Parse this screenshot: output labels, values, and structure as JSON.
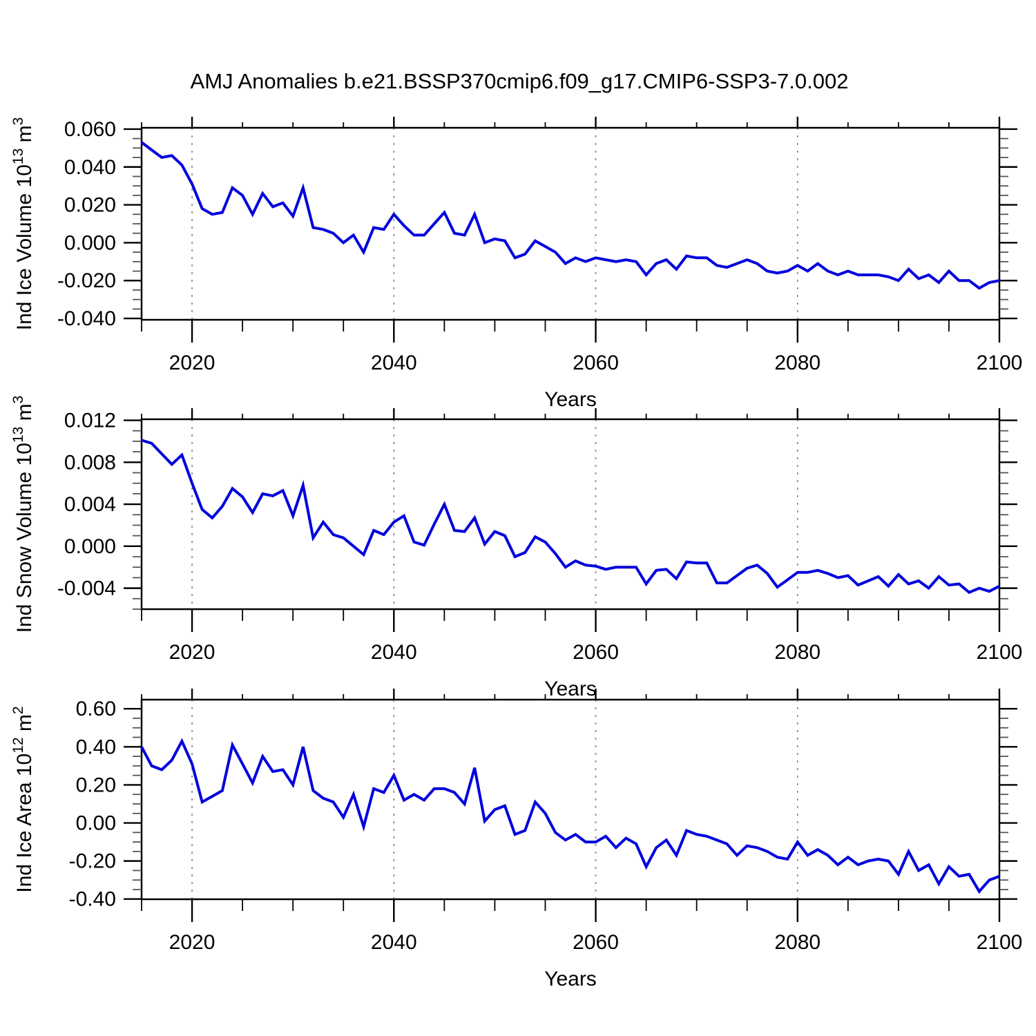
{
  "title": "AMJ Anomalies b.e21.BSSP370cmip6.f09_g17.CMIP6-SSP3-7.0.002",
  "figure": {
    "background": "#ffffff",
    "line_color": "#0000dd",
    "grid_color": "#808080",
    "text_color": "#000000"
  },
  "years": [
    2015,
    2016,
    2017,
    2018,
    2019,
    2020,
    2021,
    2022,
    2023,
    2024,
    2025,
    2026,
    2027,
    2028,
    2029,
    2030,
    2031,
    2032,
    2033,
    2034,
    2035,
    2036,
    2037,
    2038,
    2039,
    2040,
    2041,
    2042,
    2043,
    2044,
    2045,
    2046,
    2047,
    2048,
    2049,
    2050,
    2051,
    2052,
    2053,
    2054,
    2055,
    2056,
    2057,
    2058,
    2059,
    2060,
    2061,
    2062,
    2063,
    2064,
    2065,
    2066,
    2067,
    2068,
    2069,
    2070,
    2071,
    2072,
    2073,
    2074,
    2075,
    2076,
    2077,
    2078,
    2079,
    2080,
    2081,
    2082,
    2083,
    2084,
    2085,
    2086,
    2087,
    2088,
    2089,
    2090,
    2091,
    2092,
    2093,
    2094,
    2095,
    2096,
    2097,
    2098,
    2099,
    2100
  ],
  "chart_data": [
    {
      "type": "line",
      "name": "ice-volume",
      "ylabel": "Ind Ice Volume 10^13 m^3",
      "ylabel_parts": [
        {
          "t": "Ind Ice Volume 10"
        },
        {
          "t": "13",
          "sup": true
        },
        {
          "t": " m"
        },
        {
          "t": "3",
          "sup": true
        }
      ],
      "xlabel": "Years",
      "xlim": [
        2015,
        2100
      ],
      "ylim": [
        -0.04,
        0.06
      ],
      "ytick_labels": [
        "0.060",
        "0.040",
        "0.020",
        "0.000",
        "-0.020",
        "-0.040"
      ],
      "ytick_values": [
        0.06,
        0.04,
        0.02,
        0.0,
        -0.02,
        -0.04
      ],
      "y_minor_step": 0.005,
      "xtick_labels": [
        "2020",
        "2040",
        "2060",
        "2080",
        "2100"
      ],
      "xtick_values": [
        2020,
        2040,
        2060,
        2080,
        2100
      ],
      "x_minor_step": 5,
      "grid_x": [
        2020,
        2040,
        2060,
        2080
      ],
      "legend": "none",
      "values": [
        0.053,
        0.049,
        0.045,
        0.046,
        0.041,
        0.031,
        0.018,
        0.015,
        0.016,
        0.029,
        0.025,
        0.015,
        0.026,
        0.019,
        0.021,
        0.014,
        0.029,
        0.008,
        0.007,
        0.005,
        0.0,
        0.004,
        -0.005,
        0.008,
        0.007,
        0.015,
        0.009,
        0.004,
        0.004,
        0.01,
        0.016,
        0.005,
        0.004,
        0.015,
        0.0,
        0.002,
        0.001,
        -0.008,
        -0.006,
        0.001,
        -0.002,
        -0.005,
        -0.011,
        -0.008,
        -0.01,
        -0.008,
        -0.009,
        -0.01,
        -0.009,
        -0.01,
        -0.017,
        -0.011,
        -0.009,
        -0.014,
        -0.007,
        -0.008,
        -0.008,
        -0.012,
        -0.013,
        -0.011,
        -0.009,
        -0.011,
        -0.015,
        -0.016,
        -0.015,
        -0.012,
        -0.015,
        -0.011,
        -0.015,
        -0.017,
        -0.015,
        -0.017,
        -0.017,
        -0.017,
        -0.018,
        -0.02,
        -0.014,
        -0.019,
        -0.017,
        -0.021,
        -0.015,
        -0.02,
        -0.02,
        -0.024,
        -0.021,
        -0.02
      ]
    },
    {
      "type": "line",
      "name": "snow-volume",
      "ylabel": "Ind Snow Volume 10^13 m^3",
      "ylabel_parts": [
        {
          "t": "Ind Snow Volume 10"
        },
        {
          "t": "13",
          "sup": true
        },
        {
          "t": " m"
        },
        {
          "t": "3",
          "sup": true
        }
      ],
      "xlabel": "Years",
      "xlim": [
        2015,
        2100
      ],
      "ylim": [
        -0.004,
        0.012
      ],
      "ytick_labels": [
        "0.012",
        "0.008",
        "0.004",
        "0.000",
        "-0.004"
      ],
      "ytick_values": [
        0.012,
        0.008,
        0.004,
        0.0,
        -0.004
      ],
      "y_minor_step": 0.001,
      "xtick_labels": [
        "2020",
        "2040",
        "2060",
        "2080",
        "2100"
      ],
      "xtick_values": [
        2020,
        2040,
        2060,
        2080,
        2100
      ],
      "x_minor_step": 5,
      "grid_x": [
        2020,
        2040,
        2060,
        2080
      ],
      "legend": "none",
      "values": [
        0.0101,
        0.0098,
        0.0088,
        0.0078,
        0.0087,
        0.006,
        0.0035,
        0.0027,
        0.0038,
        0.0055,
        0.0047,
        0.0032,
        0.005,
        0.0048,
        0.0053,
        0.0029,
        0.0058,
        0.0008,
        0.0023,
        0.0011,
        0.0008,
        0.0,
        -0.0008,
        0.0015,
        0.0011,
        0.0023,
        0.0029,
        0.0004,
        0.0001,
        0.0021,
        0.004,
        0.0015,
        0.0014,
        0.0027,
        0.0002,
        0.0014,
        0.001,
        -0.001,
        -0.0006,
        0.0009,
        0.0004,
        -0.0007,
        -0.002,
        -0.0014,
        -0.0018,
        -0.0019,
        -0.0022,
        -0.002,
        -0.002,
        -0.002,
        -0.0036,
        -0.0023,
        -0.0022,
        -0.0031,
        -0.0015,
        -0.0016,
        -0.0016,
        -0.0035,
        -0.0035,
        -0.0028,
        -0.0021,
        -0.0018,
        -0.0026,
        -0.0039,
        -0.0032,
        -0.0025,
        -0.0025,
        -0.0023,
        -0.0026,
        -0.003,
        -0.0028,
        -0.0037,
        -0.0033,
        -0.0029,
        -0.0038,
        -0.0027,
        -0.0036,
        -0.0033,
        -0.004,
        -0.0029,
        -0.0037,
        -0.0036,
        -0.0044,
        -0.004,
        -0.0043,
        -0.0038
      ]
    },
    {
      "type": "line",
      "name": "ice-area",
      "ylabel": "Ind Ice Area 10^12 m^2",
      "ylabel_parts": [
        {
          "t": "Ind Ice Area 10"
        },
        {
          "t": "12",
          "sup": true
        },
        {
          "t": " m"
        },
        {
          "t": "2",
          "sup": true
        }
      ],
      "xlabel": "Years",
      "xlim": [
        2015,
        2100
      ],
      "ylim": [
        -0.4,
        0.6
      ],
      "ytick_labels": [
        "0.60",
        "0.40",
        "0.20",
        "0.00",
        "-0.20",
        "-0.40"
      ],
      "ytick_values": [
        0.6,
        0.4,
        0.2,
        0.0,
        -0.2,
        -0.4
      ],
      "y_minor_step": 0.05,
      "xtick_labels": [
        "2020",
        "2040",
        "2060",
        "2080",
        "2100"
      ],
      "xtick_values": [
        2020,
        2040,
        2060,
        2080,
        2100
      ],
      "x_minor_step": 5,
      "grid_x": [
        2020,
        2040,
        2060,
        2080
      ],
      "legend": "none",
      "values": [
        0.4,
        0.3,
        0.28,
        0.33,
        0.43,
        0.31,
        0.11,
        0.14,
        0.17,
        0.41,
        0.31,
        0.21,
        0.35,
        0.27,
        0.28,
        0.2,
        0.4,
        0.17,
        0.13,
        0.11,
        0.03,
        0.15,
        -0.02,
        0.18,
        0.16,
        0.25,
        0.12,
        0.15,
        0.12,
        0.18,
        0.18,
        0.16,
        0.1,
        0.29,
        0.01,
        0.07,
        0.09,
        -0.06,
        -0.04,
        0.11,
        0.05,
        -0.05,
        -0.09,
        -0.06,
        -0.1,
        -0.1,
        -0.07,
        -0.13,
        -0.08,
        -0.11,
        -0.23,
        -0.13,
        -0.09,
        -0.17,
        -0.04,
        -0.06,
        -0.07,
        -0.09,
        -0.11,
        -0.17,
        -0.12,
        -0.13,
        -0.15,
        -0.18,
        -0.19,
        -0.1,
        -0.17,
        -0.14,
        -0.17,
        -0.22,
        -0.18,
        -0.22,
        -0.2,
        -0.19,
        -0.2,
        -0.27,
        -0.15,
        -0.25,
        -0.22,
        -0.32,
        -0.23,
        -0.28,
        -0.27,
        -0.36,
        -0.3,
        -0.28
      ]
    }
  ]
}
